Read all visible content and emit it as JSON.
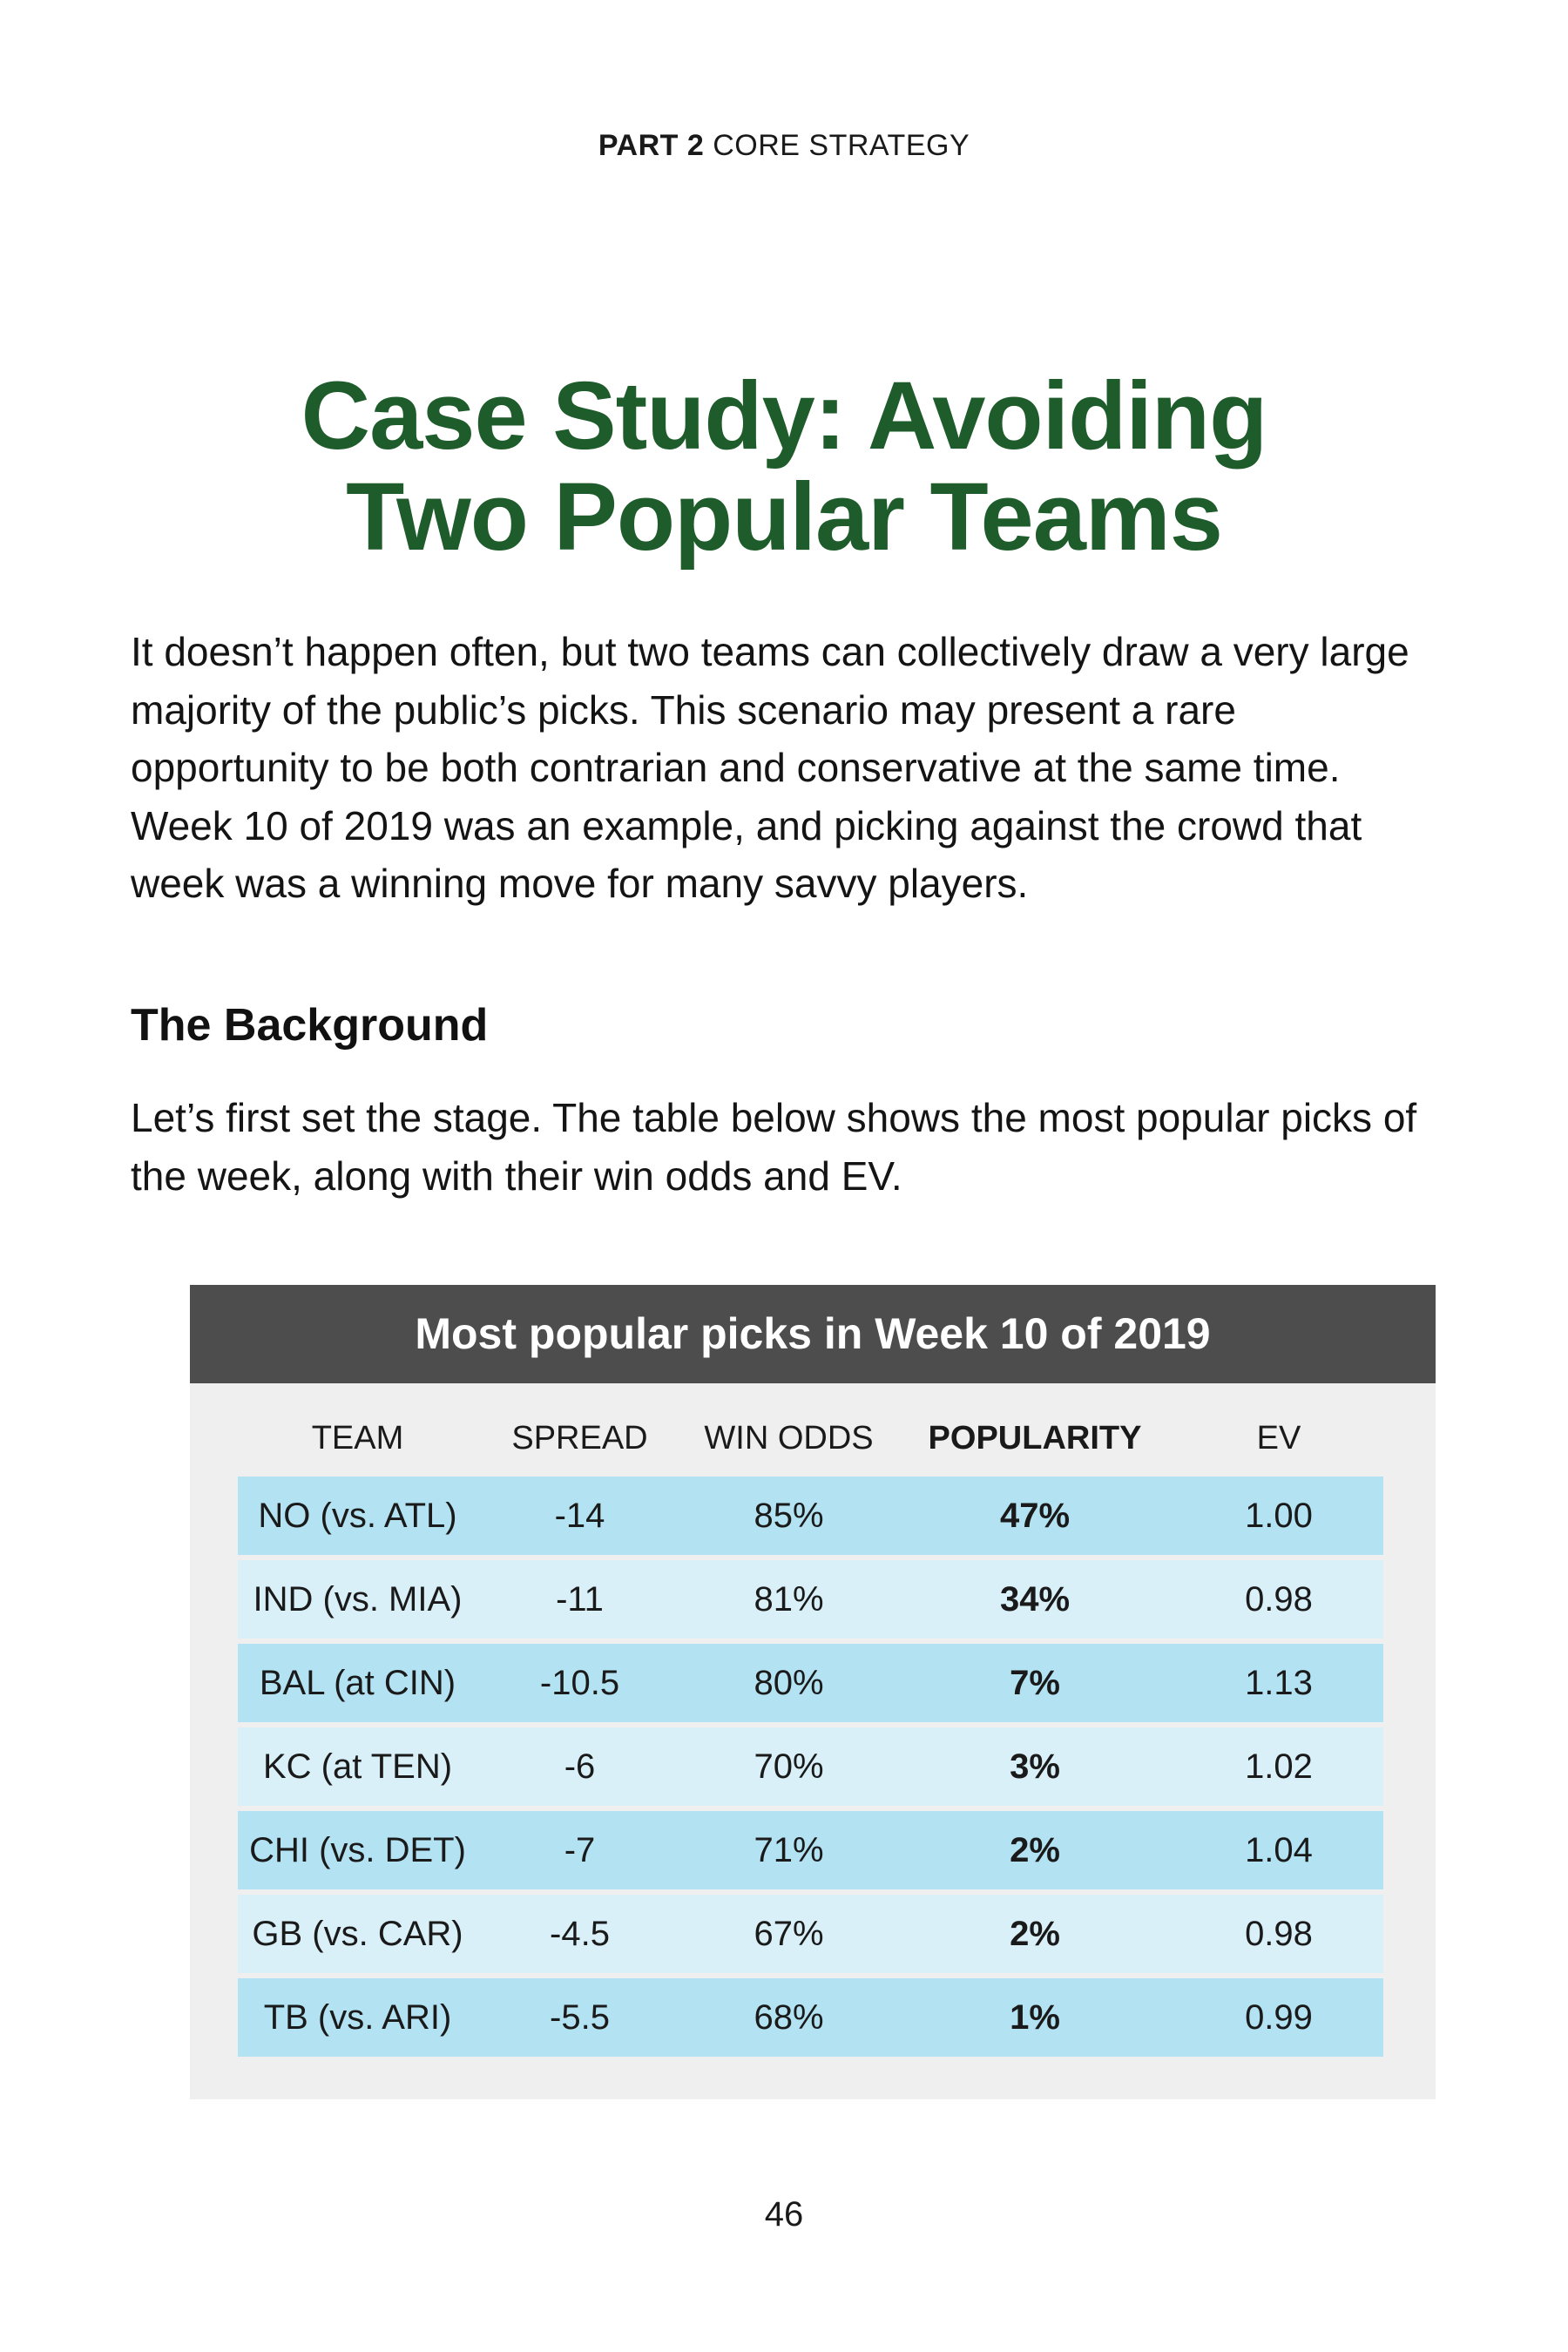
{
  "running_head": {
    "part_label": "PART 2",
    "part_title": "CORE STRATEGY"
  },
  "title": {
    "line1": "Case Study: Avoiding",
    "line2": "Two Popular Teams"
  },
  "intro": "It doesn’t happen often, but two teams can collectively draw a very large majority of the public’s picks. This scenario may present a rare opportunity to be both contrarian and conservative at the same time. Week 10 of 2019 was an example, and picking against the crowd that week was a winning move for many savvy players.",
  "section": {
    "heading": "The Background",
    "text": "Let’s first set the stage. The table below shows the most popular picks of the week, along with their win odds and EV."
  },
  "table": {
    "title": "Most popular picks in Week 10 of 2019",
    "columns": [
      "TEAM",
      "SPREAD",
      "WIN ODDS",
      "POPULARITY",
      "EV"
    ],
    "rows": [
      [
        "NO (vs. ATL)",
        "-14",
        "85%",
        "47%",
        "1.00"
      ],
      [
        "IND (vs. MIA)",
        "-11",
        "81%",
        "34%",
        "0.98"
      ],
      [
        "BAL (at CIN)",
        "-10.5",
        "80%",
        "7%",
        "1.13"
      ],
      [
        "KC (at TEN)",
        "-6",
        "70%",
        "3%",
        "1.02"
      ],
      [
        "CHI (vs. DET)",
        "-7",
        "71%",
        "2%",
        "1.04"
      ],
      [
        "GB (vs. CAR)",
        "-4.5",
        "67%",
        "2%",
        "0.98"
      ],
      [
        "TB (vs. ARI)",
        "-5.5",
        "68%",
        "1%",
        "0.99"
      ]
    ]
  },
  "page_number": "46",
  "colors": {
    "title_green": "#1f5c2b",
    "table_header_bg": "#4d4d4d",
    "row_dark": "#b3e2f2",
    "row_light": "#d9f0f8",
    "table_panel": "#efefef"
  }
}
